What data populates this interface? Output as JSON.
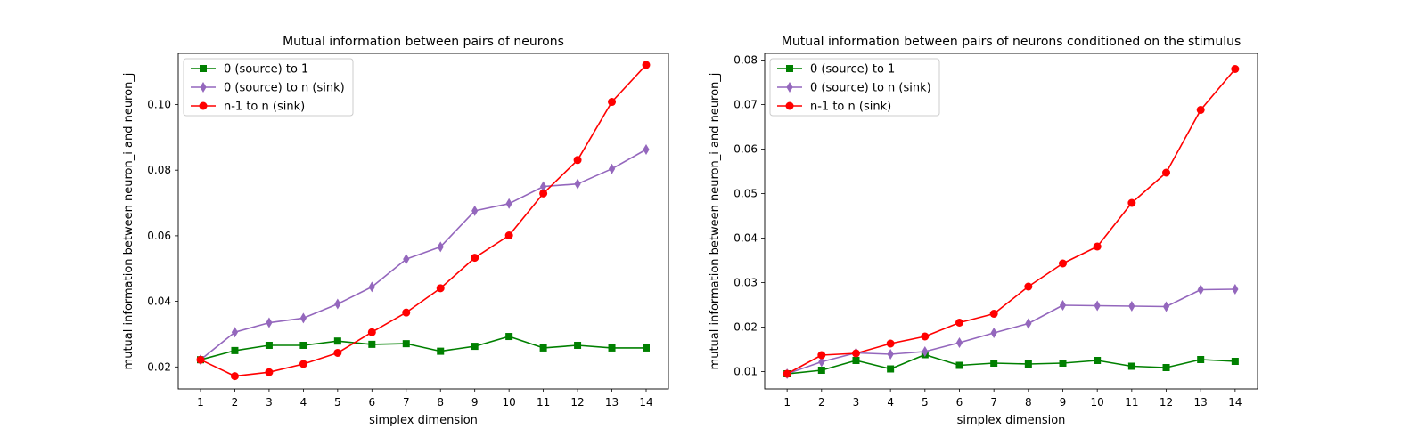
{
  "chart_data": [
    {
      "type": "line",
      "title": "Mutual information between pairs of neurons",
      "xlabel": "simplex dimension",
      "ylabel": "mutual information between neuron_i and neuron_j",
      "x": [
        1,
        2,
        3,
        4,
        5,
        6,
        7,
        8,
        9,
        10,
        11,
        12,
        13,
        14
      ],
      "xlim": [
        0.35,
        14.65
      ],
      "ylim": [
        0.0133,
        0.1156
      ],
      "yticks": [
        0.02,
        0.04,
        0.06,
        0.08,
        0.1
      ],
      "yticklabels": [
        "0.02",
        "0.04",
        "0.06",
        "0.08",
        "0.10"
      ],
      "grid": false,
      "legend": "top-left",
      "series": [
        {
          "name": "0 (source) to 1",
          "color": "#008000",
          "marker": "square",
          "values": [
            0.0222,
            0.025,
            0.0266,
            0.0266,
            0.0279,
            0.0269,
            0.0271,
            0.0248,
            0.0263,
            0.0293,
            0.0258,
            0.0266,
            0.0258,
            0.0258
          ]
        },
        {
          "name": "0 (source) to n (sink)",
          "color": "#9467bd",
          "marker": "thin_diamond",
          "values": [
            0.0222,
            0.0306,
            0.0335,
            0.0349,
            0.0392,
            0.0444,
            0.0529,
            0.0566,
            0.0676,
            0.0698,
            0.075,
            0.0758,
            0.0804,
            0.0863
          ]
        },
        {
          "name": "n-1 to n (sink)",
          "color": "#ff0000",
          "marker": "circle",
          "values": [
            0.0222,
            0.0172,
            0.0184,
            0.0209,
            0.0243,
            0.0306,
            0.0366,
            0.044,
            0.0533,
            0.0601,
            0.0729,
            0.0831,
            0.1008,
            0.1121
          ]
        }
      ]
    },
    {
      "type": "line",
      "title": "Mutual information between pairs of neurons conditioned on the stimulus",
      "xlabel": "simplex dimension",
      "ylabel": "mutual information between neuron_i and neuron_j",
      "x": [
        1,
        2,
        3,
        4,
        5,
        6,
        7,
        8,
        9,
        10,
        11,
        12,
        13,
        14
      ],
      "xlim": [
        0.35,
        14.65
      ],
      "ylim": [
        0.0061,
        0.0815
      ],
      "yticks": [
        0.01,
        0.02,
        0.03,
        0.04,
        0.05,
        0.06,
        0.07,
        0.08
      ],
      "yticklabels": [
        "0.01",
        "0.02",
        "0.03",
        "0.04",
        "0.05",
        "0.06",
        "0.07",
        "0.08"
      ],
      "grid": false,
      "legend": "top-left",
      "series": [
        {
          "name": "0 (source) to 1",
          "color": "#008000",
          "marker": "square",
          "values": [
            0.0095,
            0.0103,
            0.0125,
            0.0106,
            0.0138,
            0.0114,
            0.0119,
            0.0117,
            0.0119,
            0.0125,
            0.0112,
            0.0109,
            0.0127,
            0.0123
          ]
        },
        {
          "name": "0 (source) to n (sink)",
          "color": "#9467bd",
          "marker": "thin_diamond",
          "values": [
            0.0095,
            0.0122,
            0.0142,
            0.0139,
            0.0145,
            0.0165,
            0.0187,
            0.0208,
            0.0249,
            0.0248,
            0.0247,
            0.0246,
            0.0284,
            0.0285
          ]
        },
        {
          "name": "n-1 to n (sink)",
          "color": "#ff0000",
          "marker": "circle",
          "values": [
            0.0095,
            0.0137,
            0.0141,
            0.0163,
            0.0179,
            0.021,
            0.023,
            0.0291,
            0.0343,
            0.0381,
            0.0479,
            0.0547,
            0.0688,
            0.078
          ]
        }
      ]
    }
  ]
}
